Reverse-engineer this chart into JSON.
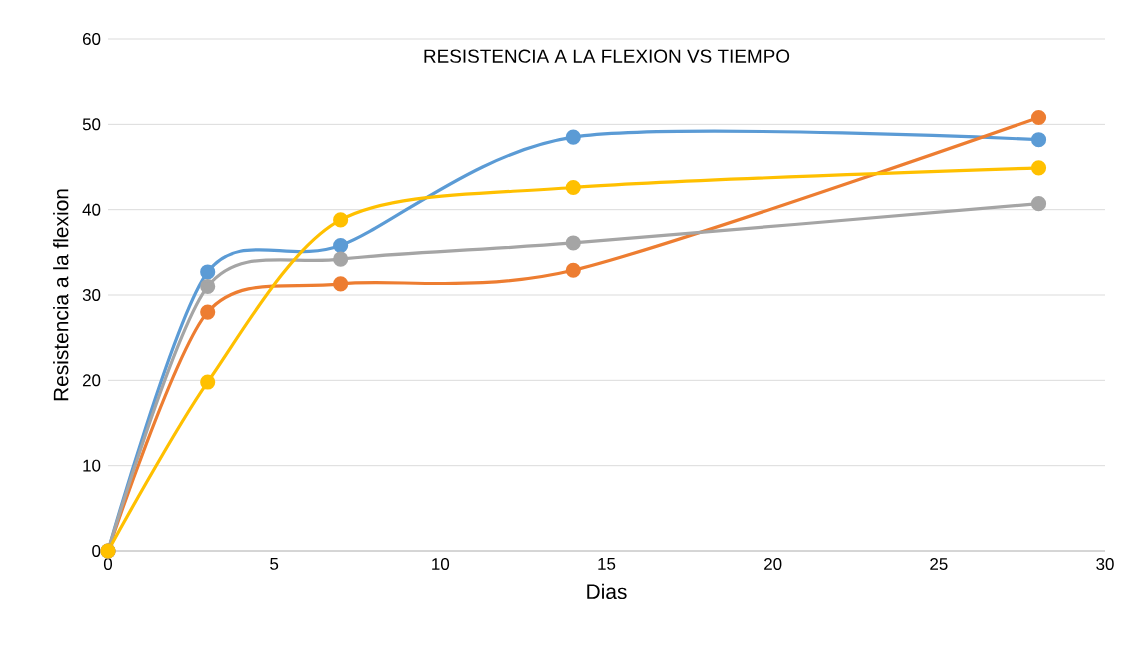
{
  "chart_data": {
    "type": "line",
    "title": "RESISTENCIA A LA FLEXION VS TIEMPO",
    "xlabel": "Dias",
    "ylabel": "Resistencia a la flexion",
    "x": [
      0,
      3,
      7,
      14,
      28
    ],
    "series": [
      {
        "color": "#5b9bd5",
        "values": [
          0,
          32.7,
          35.8,
          48.5,
          48.2
        ]
      },
      {
        "color": "#ed7d31",
        "values": [
          0,
          28,
          31.3,
          32.9,
          50.8
        ]
      },
      {
        "color": "#a5a5a5",
        "values": [
          0,
          31,
          34.2,
          36.1,
          40.7
        ]
      },
      {
        "color": "#ffc000",
        "values": [
          0,
          19.8,
          38.8,
          42.6,
          44.9
        ]
      }
    ],
    "xlim": [
      0,
      30
    ],
    "xticks": [
      0,
      5,
      10,
      15,
      20,
      25,
      30
    ],
    "ylim": [
      0,
      60
    ],
    "yticks": [
      0,
      10,
      20,
      30,
      40,
      50,
      60
    ],
    "grid": "y",
    "marker": "circle",
    "line_style": "solid"
  }
}
